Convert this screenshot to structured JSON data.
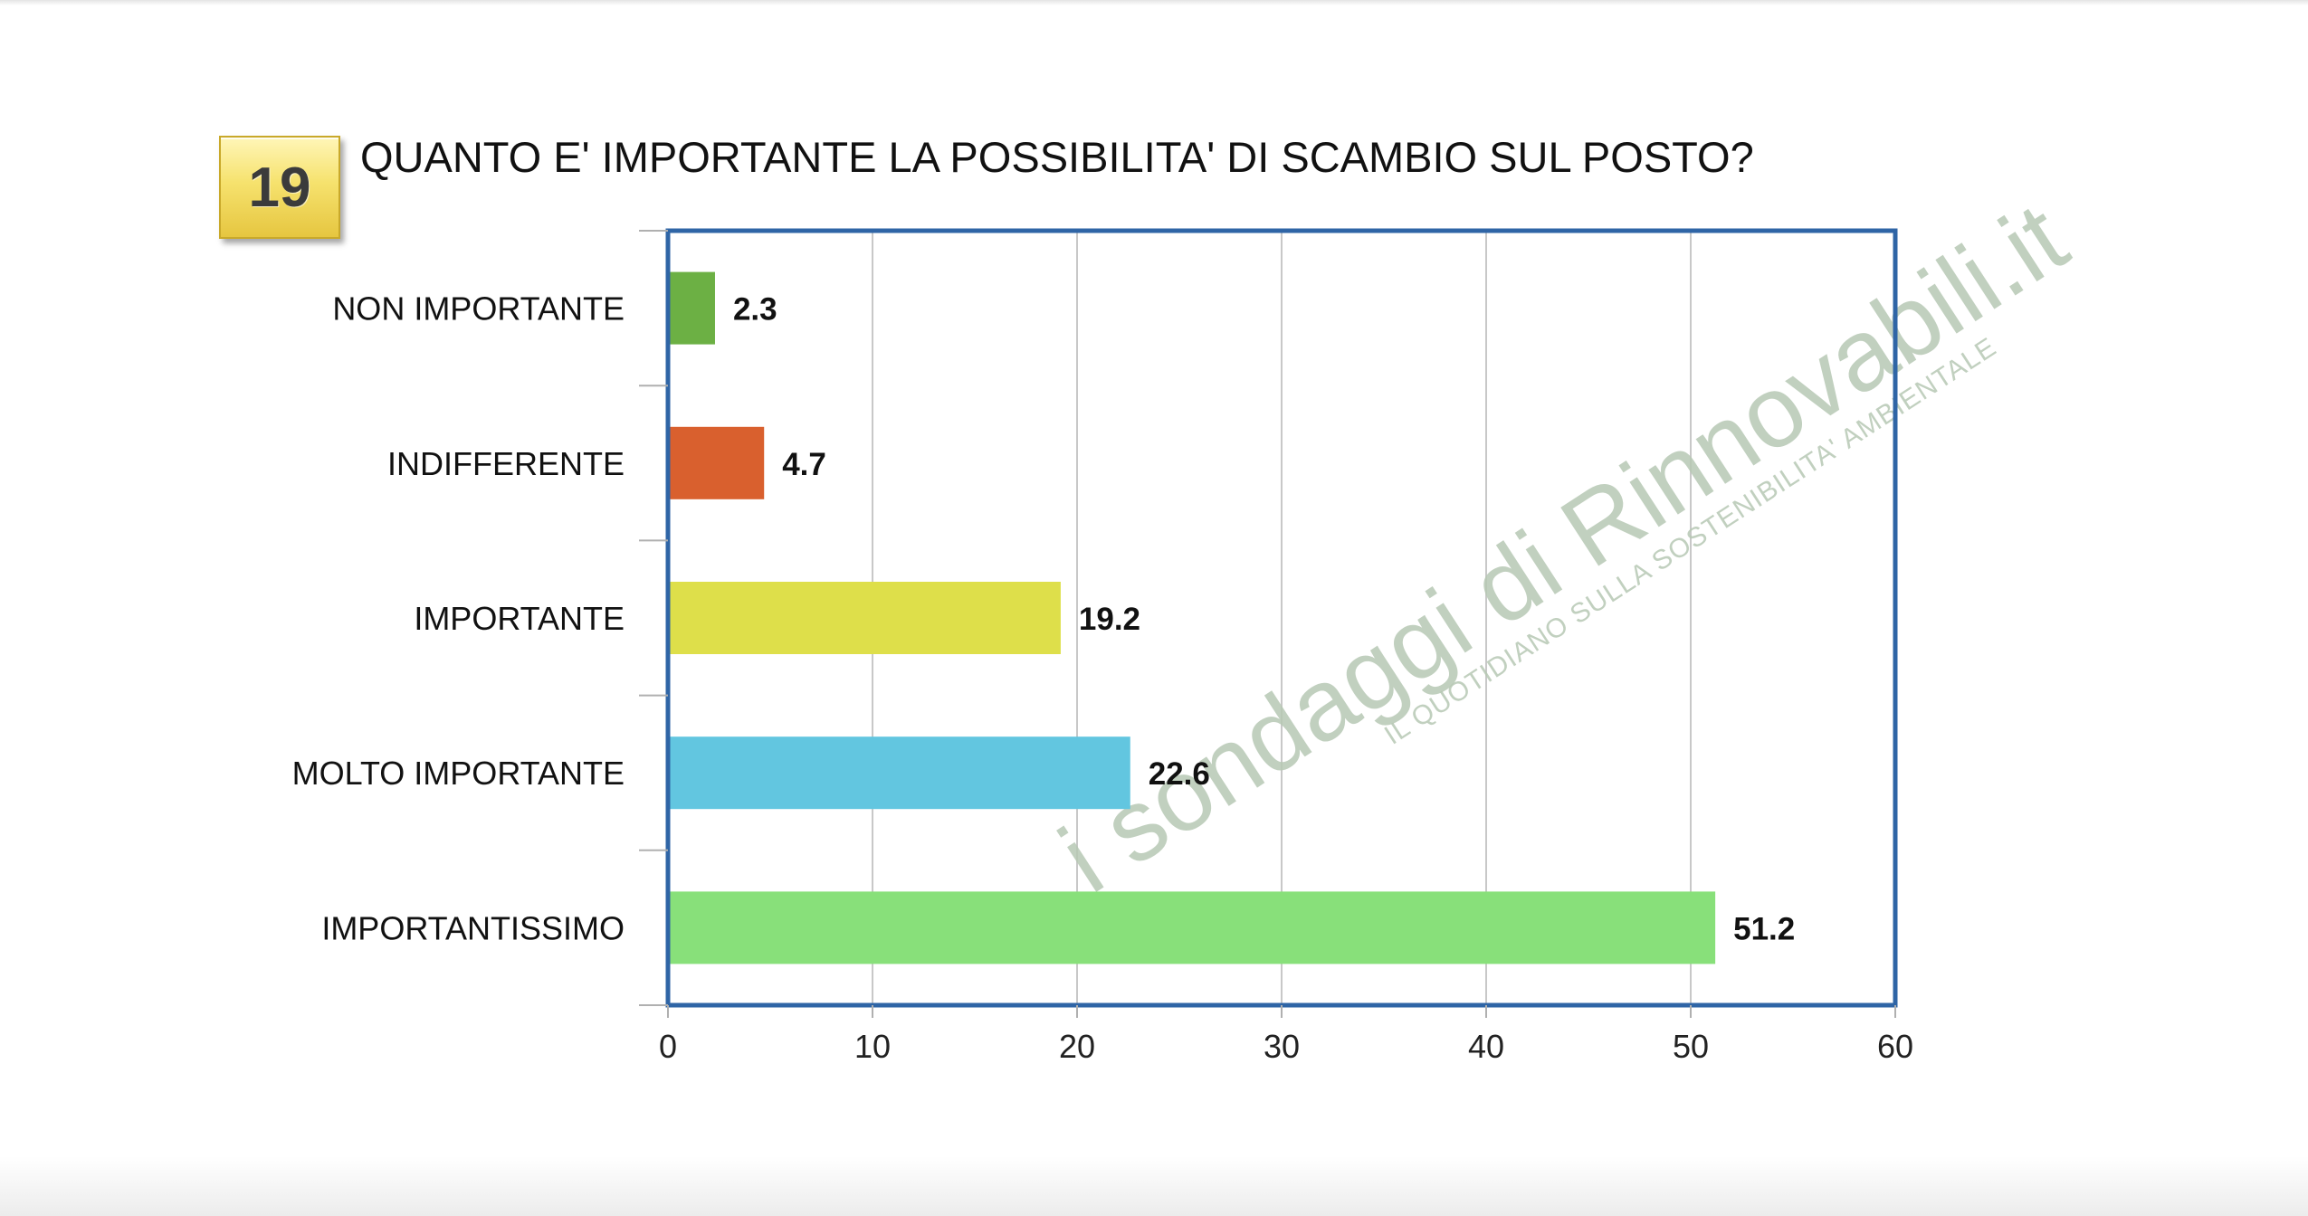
{
  "badge_number": "19",
  "title": "QUANTO E' IMPORTANTE LA POSSIBILITA' DI SCAMBIO SUL POSTO?",
  "watermark": {
    "line1": "i sondaggi di Rinnovabili.it",
    "line2": "IL QUOTIDIANO SULLA SOSTENIBILITA' AMBIENTALE"
  },
  "colors": {
    "frame": "#2f65a6",
    "grid": "#c8c8c8",
    "watermark": "#b7c8b4"
  },
  "chart_data": {
    "type": "bar",
    "orientation": "horizontal",
    "categories": [
      "NON IMPORTANTE",
      "INDIFFERENTE",
      "IMPORTANTE",
      "MOLTO IMPORTANTE",
      "IMPORTANTISSIMO"
    ],
    "values": [
      2.3,
      4.7,
      19.2,
      22.6,
      51.2
    ],
    "value_labels": [
      "2.3",
      "4.7",
      "19.2",
      "22.6",
      "51.2"
    ],
    "bar_colors": [
      "#6cb044",
      "#d9602e",
      "#dedf4a",
      "#62c6e0",
      "#88e07a"
    ],
    "xlim": [
      0,
      60
    ],
    "x_ticks": [
      "0",
      "10",
      "20",
      "30",
      "40",
      "50",
      "60"
    ],
    "grid": true,
    "legend": false
  }
}
